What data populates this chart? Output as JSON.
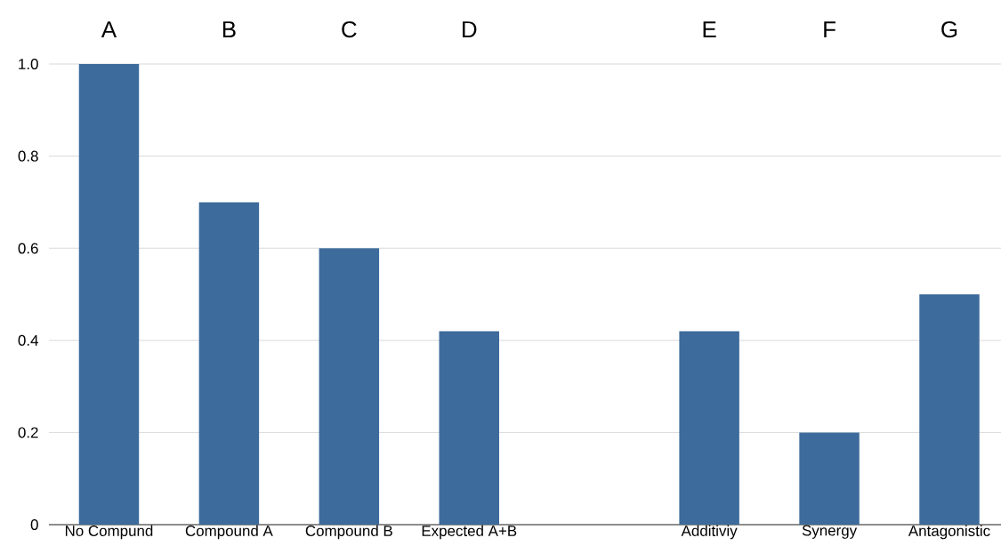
{
  "chart_data": {
    "type": "bar",
    "categories": [
      "No Compund",
      "Compound A",
      "Compound B",
      "Expected A+B",
      null,
      "Additiviy",
      "Synergy",
      "Antagonistic"
    ],
    "values": [
      1.0,
      0.7,
      0.6,
      0.42,
      null,
      0.42,
      0.2,
      0.5
    ],
    "color": "#3d6b9c",
    "ylim": [
      0,
      1.0
    ],
    "yticks": [
      0,
      0.2,
      0.4,
      0.6,
      0.8,
      {
        "value": 1,
        "label": "1.0"
      }
    ],
    "grid": "y",
    "annotations": [
      "A",
      "B",
      "C",
      "D",
      "E",
      "F",
      "G"
    ]
  }
}
